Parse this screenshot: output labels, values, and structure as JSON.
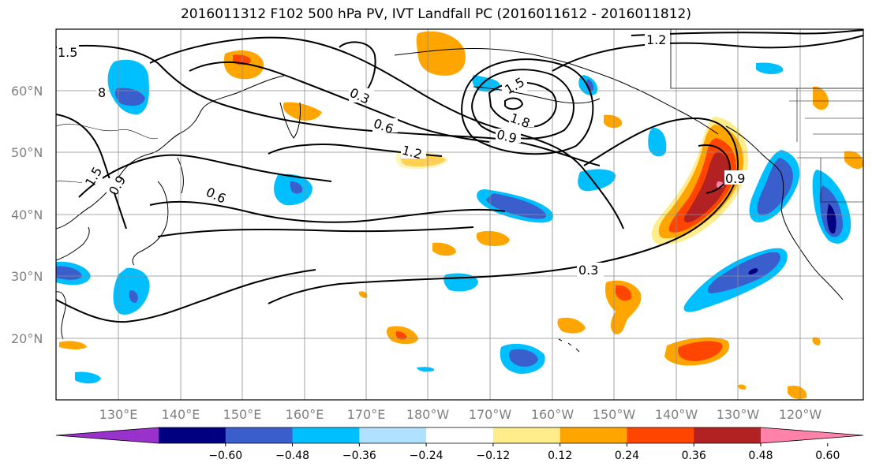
{
  "title": "2016011312 F102 500 hPa PV, IVT Landfall PC (2016011612 - 2016011812)",
  "axes": {
    "lat_ticks": [
      "20°N",
      "30°N",
      "40°N",
      "50°N",
      "60°N"
    ],
    "lon_ticks": [
      "130°E",
      "140°E",
      "150°E",
      "160°E",
      "170°E",
      "180°W",
      "170°W",
      "160°W",
      "150°W",
      "140°W",
      "130°W",
      "120°W"
    ],
    "grid": true,
    "tick_color": "#808080"
  },
  "contour_labels": [
    "1.5",
    "8",
    "1.5",
    "0.9",
    "0.6",
    "0.3",
    "0.6",
    "1.2",
    "1.5",
    "1.8",
    "0.9",
    "1.2",
    "0.9",
    "0.3"
  ],
  "colorbar": {
    "ticks": [
      "−0.60",
      "−0.48",
      "−0.36",
      "−0.24",
      "−0.12",
      "0.12",
      "0.24",
      "0.36",
      "0.48",
      "0.60"
    ],
    "colors": [
      "#9932cc",
      "#000080",
      "#3a5fcd",
      "#00bfff",
      "#b0e2ff",
      "#ffffff",
      "#ffec8b",
      "#ffa500",
      "#ff4500",
      "#b22222",
      "#ff82ab"
    ]
  },
  "chart_data": {
    "type": "map",
    "title": "2016011312 F102 500 hPa PV, IVT Landfall PC (2016011612 - 2016011812)",
    "projection": "PlateCarree",
    "lon_range": [
      "120°E",
      "115°W"
    ],
    "lat_range": [
      "10°N",
      "70°N"
    ],
    "fill_field_levels": [
      -0.6,
      -0.48,
      -0.36,
      -0.24,
      -0.12,
      0.12,
      0.24,
      0.36,
      0.48,
      0.6
    ],
    "contour_levels_shown": [
      0.3,
      0.6,
      0.9,
      1.2,
      1.5,
      1.8
    ]
  }
}
